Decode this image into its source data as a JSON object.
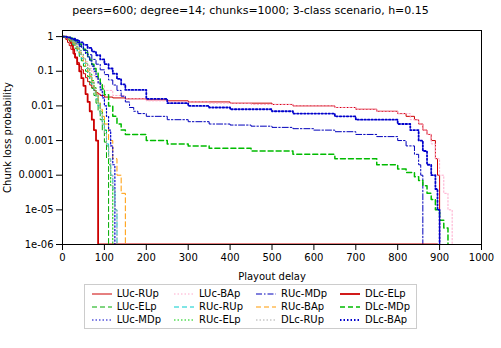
{
  "chart_data": {
    "type": "line",
    "title": "peers=600; degree=14; chunks=1000; 3-class scenario, h=0.15",
    "x_label": "Playout delay",
    "y_label": "Chunk loss probability",
    "log": "y",
    "grid": false,
    "legend": "bottom",
    "xlim": [
      0,
      1000
    ],
    "xticks": [
      0,
      100,
      200,
      300,
      400,
      500,
      600,
      700,
      800,
      900,
      1000
    ],
    "ylim": [
      1e-06,
      1.5
    ],
    "yticks": [
      {
        "value": 1e-06,
        "label": "1e-06"
      },
      {
        "value": 1e-05,
        "label": "1e-05"
      },
      0.0001,
      0.001,
      0.01,
      0.1,
      1
    ],
    "series": [
      {
        "name": "LUc-RUp",
        "color": "#cc0000",
        "line_style": "solid",
        "x": [
          0,
          2,
          5,
          8,
          12,
          16,
          20,
          25,
          30,
          35,
          40,
          45,
          50,
          55,
          60,
          65,
          70,
          75,
          80,
          85,
          90,
          100,
          120,
          150,
          200,
          250,
          300,
          350,
          400,
          450,
          500,
          550,
          600,
          650,
          700,
          750,
          800,
          820,
          840,
          850,
          860,
          870,
          880,
          890,
          895,
          900
        ],
        "values": [
          1,
          0.98,
          0.92,
          0.82,
          0.68,
          0.55,
          0.43,
          0.32,
          0.24,
          0.18,
          0.14,
          0.11,
          0.085,
          0.065,
          0.05,
          0.04,
          0.033,
          0.028,
          0.024,
          0.022,
          0.02,
          0.018,
          0.017,
          0.016,
          0.015,
          0.014,
          0.013,
          0.013,
          0.012,
          0.012,
          0.011,
          0.01,
          0.01,
          0.009,
          0.008,
          0.007,
          0.006,
          0.005,
          0.004,
          0.003,
          0.002,
          0.0015,
          0.001,
          0.0003,
          0.0001,
          1e-06
        ]
      },
      {
        "name": "LUc-BAp",
        "color": "#ffaacc",
        "line_style": "dotted",
        "x": [
          0,
          5,
          10,
          15,
          20,
          25,
          30,
          35,
          40,
          45,
          50,
          55,
          60,
          65,
          70,
          75,
          80,
          85,
          90,
          100,
          120,
          150,
          200,
          250,
          300,
          350,
          400,
          450,
          500,
          550,
          600,
          650,
          700,
          750,
          800,
          830,
          850,
          860,
          870,
          880,
          890,
          900,
          910,
          920,
          930
        ],
        "values": [
          1,
          0.97,
          0.92,
          0.85,
          0.76,
          0.66,
          0.56,
          0.46,
          0.38,
          0.3,
          0.24,
          0.19,
          0.15,
          0.12,
          0.095,
          0.076,
          0.06,
          0.048,
          0.039,
          0.028,
          0.02,
          0.016,
          0.014,
          0.013,
          0.013,
          0.012,
          0.012,
          0.011,
          0.011,
          0.01,
          0.01,
          0.009,
          0.008,
          0.007,
          0.006,
          0.004,
          0.003,
          0.002,
          0.0015,
          0.0008,
          0.0003,
          0.0001,
          3e-05,
          1e-05,
          1e-06
        ]
      },
      {
        "name": "RUc-MDp",
        "color": "#0000bb",
        "line_style": "dashdot",
        "x": [
          0,
          10,
          20,
          30,
          40,
          50,
          60,
          70,
          80,
          90,
          100,
          110,
          120,
          130,
          140,
          150,
          160,
          170,
          180,
          200,
          250,
          300,
          350,
          400,
          450,
          500,
          550,
          600,
          650,
          700,
          750,
          800,
          820,
          840,
          850,
          855,
          860
        ],
        "values": [
          1,
          0.9,
          0.78,
          0.65,
          0.52,
          0.4,
          0.3,
          0.22,
          0.16,
          0.11,
          0.08,
          0.056,
          0.04,
          0.028,
          0.019,
          0.013,
          0.009,
          0.007,
          0.006,
          0.005,
          0.004,
          0.0035,
          0.003,
          0.0028,
          0.0026,
          0.0024,
          0.0022,
          0.002,
          0.0018,
          0.0015,
          0.0013,
          0.001,
          0.0007,
          0.0004,
          0.0002,
          0.0001,
          1e-06
        ]
      },
      {
        "name": "DLc-ELp",
        "color": "#cc0000",
        "line_style": "solid",
        "x": [
          0,
          2,
          4,
          6,
          8,
          10,
          12,
          14,
          16,
          18,
          20,
          22,
          25,
          28,
          30,
          35,
          40,
          45,
          50,
          55,
          60,
          65,
          70,
          75,
          80,
          85,
          86,
          870,
          880,
          890,
          895
        ],
        "values": [
          1,
          1,
          1,
          0.99,
          0.98,
          0.96,
          0.93,
          0.88,
          0.82,
          0.74,
          0.65,
          0.55,
          0.43,
          0.32,
          0.25,
          0.16,
          0.1,
          0.063,
          0.038,
          0.022,
          0.013,
          0.007,
          0.004,
          0.002,
          0.001,
          1e-06,
          1e-06,
          1e-06,
          1e-06,
          1e-06,
          1e-06
        ]
      },
      {
        "name": "LUc-ELp",
        "color": "#00aa00",
        "line_style": "dashed",
        "x": [
          0,
          5,
          10,
          15,
          20,
          25,
          30,
          35,
          40,
          45,
          50,
          55,
          60,
          65,
          70,
          75,
          80,
          85,
          90,
          95,
          100,
          105,
          110
        ],
        "values": [
          1,
          0.95,
          0.88,
          0.79,
          0.68,
          0.57,
          0.46,
          0.36,
          0.27,
          0.2,
          0.14,
          0.1,
          0.07,
          0.048,
          0.032,
          0.02,
          0.012,
          0.007,
          0.004,
          0.002,
          0.0009,
          0.0003,
          1e-06
        ]
      },
      {
        "name": "RUc-RUp",
        "color": "#00cccc",
        "line_style": "dashed",
        "x": [
          0,
          5,
          10,
          15,
          20,
          25,
          30,
          35,
          40,
          45,
          50,
          55,
          60,
          65,
          70,
          75,
          80,
          85,
          90,
          95,
          100,
          105,
          110,
          115,
          120,
          125,
          130
        ],
        "values": [
          1,
          0.96,
          0.9,
          0.82,
          0.72,
          0.61,
          0.5,
          0.4,
          0.31,
          0.23,
          0.17,
          0.12,
          0.085,
          0.058,
          0.039,
          0.025,
          0.016,
          0.01,
          0.006,
          0.003,
          0.002,
          0.0008,
          0.0003,
          0.0001,
          4e-05,
          1e-05,
          1e-06
        ]
      },
      {
        "name": "RUc-BAp",
        "color": "#ff9900",
        "line_style": "dashed",
        "x": [
          0,
          5,
          10,
          15,
          20,
          25,
          30,
          35,
          40,
          45,
          50,
          55,
          60,
          65,
          70,
          75,
          80,
          85,
          90,
          95,
          100,
          110,
          120,
          130,
          140,
          150
        ],
        "values": [
          1,
          0.96,
          0.91,
          0.84,
          0.75,
          0.65,
          0.54,
          0.44,
          0.34,
          0.26,
          0.19,
          0.14,
          0.1,
          0.07,
          0.048,
          0.032,
          0.021,
          0.013,
          0.008,
          0.005,
          0.003,
          0.001,
          0.0003,
          0.0001,
          3e-05,
          1e-06
        ]
      },
      {
        "name": "DLc-MDp",
        "color": "#00bb00",
        "line_style": "dashed",
        "x": [
          0,
          5,
          10,
          15,
          20,
          25,
          30,
          35,
          40,
          45,
          50,
          55,
          60,
          65,
          70,
          75,
          80,
          85,
          90,
          95,
          100,
          110,
          120,
          130,
          140,
          150,
          200,
          250,
          300,
          350,
          400,
          450,
          500,
          550,
          600,
          650,
          700,
          750,
          800,
          820,
          840,
          850,
          860,
          870,
          880,
          890,
          900,
          910,
          920
        ],
        "values": [
          1,
          0.99,
          0.97,
          0.94,
          0.9,
          0.85,
          0.78,
          0.7,
          0.61,
          0.52,
          0.43,
          0.35,
          0.27,
          0.21,
          0.16,
          0.12,
          0.088,
          0.063,
          0.045,
          0.031,
          0.021,
          0.01,
          0.005,
          0.003,
          0.002,
          0.0015,
          0.001,
          0.0008,
          0.0007,
          0.0006,
          0.0006,
          0.0005,
          0.0005,
          0.0004,
          0.0004,
          0.0003,
          0.0003,
          0.0002,
          0.00015,
          0.00012,
          9e-05,
          7e-05,
          5e-05,
          3e-05,
          2e-05,
          1e-05,
          5e-06,
          3e-06,
          1e-06
        ]
      },
      {
        "name": "LUc-MDp",
        "color": "#0000cc",
        "line_style": "dotted",
        "x": [
          0,
          5,
          10,
          15,
          20,
          25,
          30,
          35,
          40,
          45,
          50,
          55,
          60,
          65,
          70,
          75,
          80,
          85,
          90,
          95,
          100,
          105,
          110,
          115,
          120,
          125
        ],
        "values": [
          1,
          0.98,
          0.96,
          0.93,
          0.88,
          0.82,
          0.75,
          0.67,
          0.58,
          0.5,
          0.41,
          0.33,
          0.26,
          0.2,
          0.14,
          0.1,
          0.07,
          0.046,
          0.029,
          0.017,
          0.01,
          0.005,
          0.002,
          0.0007,
          0.0002,
          1e-06
        ]
      },
      {
        "name": "RUc-ELp",
        "color": "#00cc00",
        "line_style": "dotted",
        "x": [
          0,
          5,
          10,
          15,
          20,
          25,
          30,
          35,
          40,
          45,
          50,
          55,
          60,
          65,
          70,
          75,
          80,
          85,
          90,
          95,
          100,
          105,
          110,
          115,
          120
        ],
        "values": [
          1,
          0.97,
          0.93,
          0.87,
          0.79,
          0.7,
          0.6,
          0.5,
          0.4,
          0.31,
          0.23,
          0.17,
          0.12,
          0.082,
          0.054,
          0.034,
          0.021,
          0.012,
          0.007,
          0.004,
          0.002,
          0.0007,
          0.0002,
          5e-05,
          1e-06
        ]
      },
      {
        "name": "DLc-RUp",
        "color": "#aaaaaa",
        "line_style": "dotted",
        "x": [
          0,
          5,
          10,
          15,
          20,
          25,
          30,
          35,
          40,
          45,
          50,
          55,
          60,
          65,
          70,
          75,
          80,
          85,
          90,
          95,
          100,
          105,
          110,
          115,
          120,
          125,
          130
        ],
        "values": [
          1,
          0.97,
          0.93,
          0.87,
          0.79,
          0.7,
          0.59,
          0.49,
          0.39,
          0.3,
          0.22,
          0.16,
          0.11,
          0.075,
          0.049,
          0.031,
          0.019,
          0.011,
          0.006,
          0.003,
          0.0016,
          0.0007,
          0.0003,
          0.0001,
          4e-05,
          1e-05,
          1e-06
        ]
      },
      {
        "name": "DLc-BAp",
        "color": "#0000cc",
        "line_style": "dotted",
        "x": [
          0,
          10,
          20,
          30,
          40,
          50,
          60,
          70,
          80,
          90,
          100,
          110,
          120,
          130,
          140,
          150,
          200,
          250,
          300,
          350,
          400,
          450,
          500,
          550,
          600,
          650,
          700,
          750,
          800,
          830,
          850,
          860,
          870,
          880,
          890,
          895,
          900
        ],
        "values": [
          1,
          0.95,
          0.88,
          0.79,
          0.68,
          0.58,
          0.47,
          0.37,
          0.29,
          0.22,
          0.16,
          0.12,
          0.085,
          0.06,
          0.042,
          0.029,
          0.016,
          0.012,
          0.01,
          0.009,
          0.008,
          0.008,
          0.007,
          0.006,
          0.006,
          0.005,
          0.004,
          0.004,
          0.003,
          0.002,
          0.001,
          0.0005,
          0.0002,
          0.0001,
          4e-05,
          1e-05,
          1e-06
        ]
      }
    ]
  }
}
